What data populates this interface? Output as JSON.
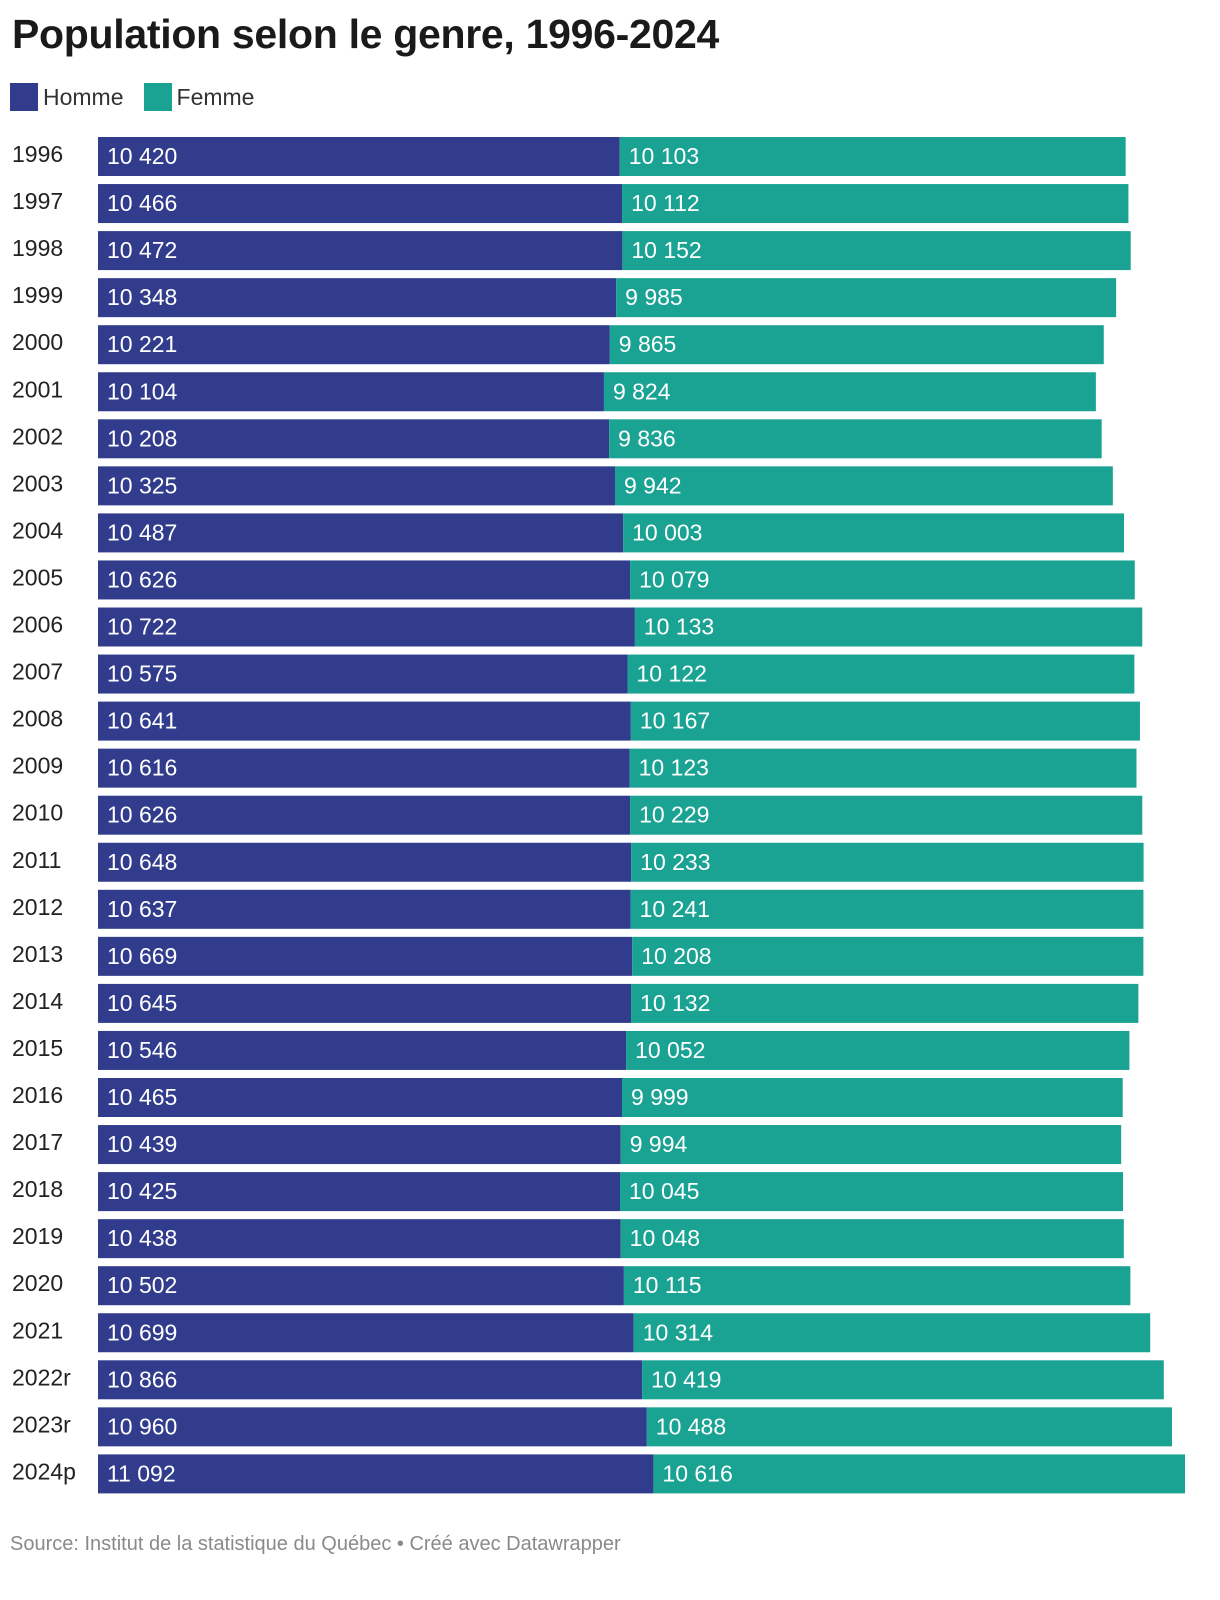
{
  "title": "Population selon le genre, 1996-2024",
  "source": "Source: Institut de la statistique du Québec • Créé avec Datawrapper",
  "colors": {
    "homme": "#313c8c",
    "femme": "#1aa393"
  },
  "chart_data": {
    "type": "bar",
    "orientation": "horizontal",
    "stacked": true,
    "categories": [
      "1996",
      "1997",
      "1998",
      "1999",
      "2000",
      "2001",
      "2002",
      "2003",
      "2004",
      "2005",
      "2006",
      "2007",
      "2008",
      "2009",
      "2010",
      "2011",
      "2012",
      "2013",
      "2014",
      "2015",
      "2016",
      "2017",
      "2018",
      "2019",
      "2020",
      "2021",
      "2022r",
      "2023r",
      "2024p"
    ],
    "series": [
      {
        "name": "Homme",
        "values": [
          10420,
          10466,
          10472,
          10348,
          10221,
          10104,
          10208,
          10325,
          10487,
          10626,
          10722,
          10575,
          10641,
          10616,
          10626,
          10648,
          10637,
          10669,
          10645,
          10546,
          10465,
          10439,
          10425,
          10438,
          10502,
          10699,
          10866,
          10960,
          11092
        ]
      },
      {
        "name": "Femme",
        "values": [
          10103,
          10112,
          10152,
          9985,
          9865,
          9824,
          9836,
          9942,
          10003,
          10079,
          10133,
          10122,
          10167,
          10123,
          10229,
          10233,
          10241,
          10208,
          10132,
          10052,
          9999,
          9994,
          10045,
          10048,
          10115,
          10314,
          10419,
          10488,
          10616
        ]
      }
    ],
    "labels": {
      "Homme": [
        "10 420",
        "10 466",
        "10 472",
        "10 348",
        "10 221",
        "10 104",
        "10 208",
        "10 325",
        "10 487",
        "10 626",
        "10 722",
        "10 575",
        "10 641",
        "10 616",
        "10 626",
        "10 648",
        "10 637",
        "10 669",
        "10 645",
        "10 546",
        "10 465",
        "10 439",
        "10 425",
        "10 438",
        "10 502",
        "10 699",
        "10 866",
        "10 960",
        "11 092"
      ],
      "Femme": [
        "10 103",
        "10 112",
        "10 152",
        "9 985",
        "9 865",
        "9 824",
        "9 836",
        "9 942",
        "10 003",
        "10 079",
        "10 133",
        "10 122",
        "10 167",
        "10 123",
        "10 229",
        "10 233",
        "10 241",
        "10 208",
        "10 132",
        "10 052",
        "9 999",
        "9 994",
        "10 045",
        "10 048",
        "10 115",
        "10 314",
        "10 419",
        "10 488",
        "10 616"
      ]
    },
    "xlim": [
      0,
      21708
    ],
    "grid": false,
    "legend": "top-left"
  }
}
